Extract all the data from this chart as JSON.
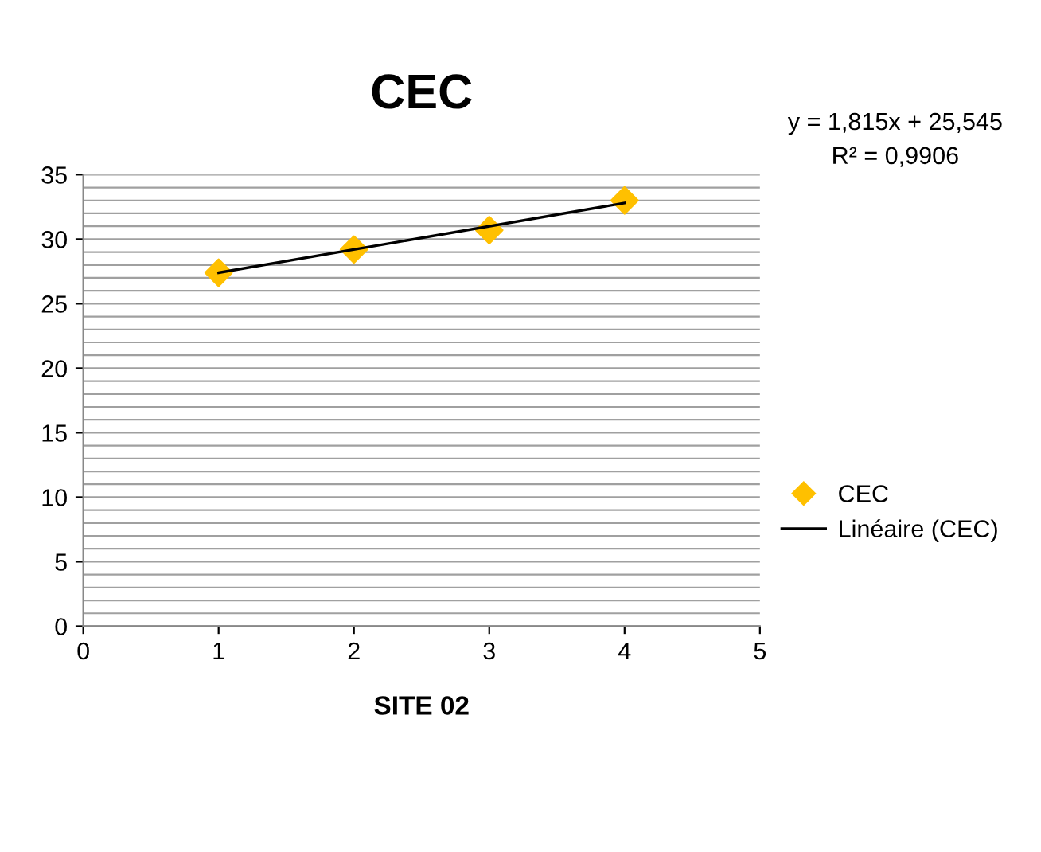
{
  "chart_data": {
    "type": "scatter",
    "title": "CEC",
    "xlabel": "SITE 02",
    "x": [
      1,
      2,
      3,
      4
    ],
    "series": [
      {
        "name": "CEC",
        "color": "#ffc000",
        "values": [
          27.4,
          29.2,
          30.7,
          33.0
        ],
        "marker": "diamond"
      },
      {
        "name": "Linéaire (CEC)",
        "type": "line",
        "color": "#000000",
        "x": [
          1,
          4
        ],
        "values": [
          27.4,
          32.8
        ],
        "marker": "none",
        "line_style": "solid"
      }
    ],
    "annotations": [
      "y = 1,815x + 25,545",
      "R² = 0,9906"
    ],
    "xlim": [
      0,
      5
    ],
    "xticks": [
      0,
      1,
      2,
      3,
      4,
      5
    ],
    "ylim": [
      0,
      35
    ],
    "yticks": [
      0,
      {
        "value": 1,
        "label": null
      },
      {
        "value": 2,
        "label": null
      },
      {
        "value": 3,
        "label": null
      },
      {
        "value": 4,
        "label": null
      },
      5,
      {
        "value": 6,
        "label": null
      },
      {
        "value": 7,
        "label": null
      },
      {
        "value": 8,
        "label": null
      },
      {
        "value": 9,
        "label": null
      },
      10,
      {
        "value": 11,
        "label": null
      },
      {
        "value": 12,
        "label": null
      },
      {
        "value": 13,
        "label": null
      },
      {
        "value": 14,
        "label": null
      },
      15,
      {
        "value": 16,
        "label": null
      },
      {
        "value": 17,
        "label": null
      },
      {
        "value": 18,
        "label": null
      },
      {
        "value": 19,
        "label": null
      },
      20,
      {
        "value": 21,
        "label": null
      },
      {
        "value": 22,
        "label": null
      },
      {
        "value": 23,
        "label": null
      },
      {
        "value": 24,
        "label": null
      },
      25,
      {
        "value": 26,
        "label": null
      },
      {
        "value": 27,
        "label": null
      },
      {
        "value": 28,
        "label": null
      },
      {
        "value": 29,
        "label": null
      },
      30,
      {
        "value": 31,
        "label": null
      },
      {
        "value": 32,
        "label": null
      },
      {
        "value": 33,
        "label": null
      },
      {
        "value": 34,
        "label": null
      },
      35
    ],
    "grid": "y",
    "legend": "right"
  }
}
